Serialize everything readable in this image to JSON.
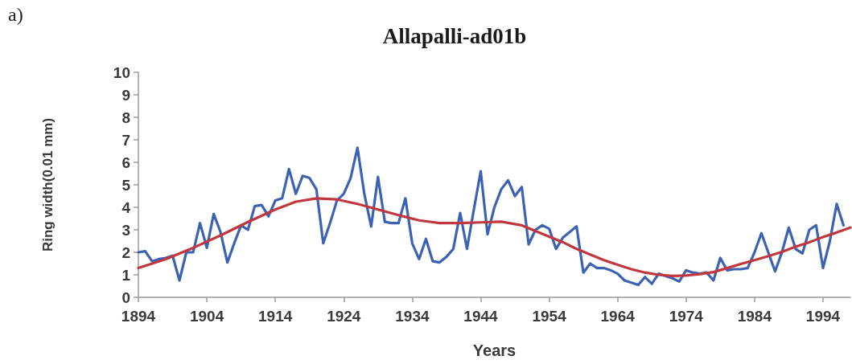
{
  "chart_data": {
    "type": "line",
    "title": "Allapalli-ad01b",
    "xlabel": "Years",
    "ylabel": "Ring width(0.01 mm)",
    "annotations": [
      "a)"
    ],
    "x": [
      1894,
      1895,
      1896,
      1897,
      1898,
      1899,
      1900,
      1901,
      1902,
      1903,
      1904,
      1905,
      1906,
      1907,
      1908,
      1909,
      1910,
      1911,
      1912,
      1913,
      1914,
      1915,
      1916,
      1917,
      1918,
      1919,
      1920,
      1921,
      1922,
      1923,
      1924,
      1925,
      1926,
      1927,
      1928,
      1929,
      1930,
      1931,
      1932,
      1933,
      1934,
      1935,
      1936,
      1937,
      1938,
      1939,
      1940,
      1941,
      1942,
      1943,
      1944,
      1945,
      1946,
      1947,
      1948,
      1949,
      1950,
      1951,
      1952,
      1953,
      1954,
      1955,
      1956,
      1957,
      1958,
      1959,
      1960,
      1961,
      1962,
      1963,
      1964,
      1965,
      1966,
      1967,
      1968,
      1969,
      1970,
      1971,
      1972,
      1973,
      1974,
      1975,
      1976,
      1977,
      1978,
      1979,
      1980,
      1981,
      1982,
      1983,
      1984,
      1985,
      1986,
      1987,
      1988,
      1989,
      1990,
      1991,
      1992,
      1993,
      1994,
      1995,
      1996,
      1997
    ],
    "series": [
      {
        "color": "#3c62b4",
        "values": [
          2.0,
          2.05,
          1.6,
          1.7,
          1.75,
          1.85,
          0.75,
          2.0,
          2.0,
          3.3,
          2.2,
          3.7,
          2.9,
          1.55,
          2.4,
          3.2,
          3.0,
          4.05,
          4.1,
          3.6,
          4.3,
          4.4,
          5.7,
          4.6,
          5.4,
          5.3,
          4.8,
          2.4,
          3.3,
          4.3,
          4.6,
          5.3,
          6.65,
          4.6,
          3.15,
          5.35,
          3.35,
          3.3,
          3.3,
          4.4,
          2.4,
          1.7,
          2.6,
          1.6,
          1.55,
          1.8,
          2.15,
          3.75,
          2.15,
          3.9,
          5.6,
          2.8,
          4.0,
          4.8,
          5.2,
          4.5,
          4.9,
          2.35,
          3.0,
          3.2,
          3.05,
          2.15,
          2.65,
          2.9,
          3.15,
          1.1,
          1.5,
          1.3,
          1.3,
          1.2,
          1.05,
          0.75,
          0.65,
          0.55,
          0.9,
          0.6,
          1.05,
          0.95,
          0.85,
          0.7,
          1.2,
          1.1,
          1.05,
          1.1,
          0.75,
          1.75,
          1.2,
          1.25,
          1.25,
          1.3,
          2.0,
          2.85,
          2.0,
          1.15,
          2.0,
          3.1,
          2.15,
          1.95,
          3.0,
          3.2,
          1.3,
          2.5,
          4.15,
          3.2
        ]
      },
      {
        "color": "#c1373f",
        "x": [
          1894,
          1898,
          1902,
          1906,
          1910,
          1914,
          1917,
          1920,
          1923,
          1926,
          1929,
          1932,
          1935,
          1938,
          1941,
          1944,
          1947,
          1950,
          1952,
          1954,
          1956,
          1958,
          1960,
          1962,
          1964,
          1966,
          1968,
          1970,
          1972,
          1974,
          1976,
          1978,
          1980,
          1982,
          1984,
          1986,
          1988,
          1990,
          1992,
          1994,
          1996,
          1998
        ],
        "values": [
          1.3,
          1.7,
          2.2,
          2.75,
          3.35,
          3.9,
          4.25,
          4.4,
          4.35,
          4.15,
          3.9,
          3.65,
          3.42,
          3.3,
          3.3,
          3.33,
          3.36,
          3.2,
          2.95,
          2.7,
          2.45,
          2.15,
          1.9,
          1.65,
          1.45,
          1.25,
          1.1,
          1.0,
          0.95,
          0.97,
          1.03,
          1.12,
          1.3,
          1.48,
          1.65,
          1.83,
          2.02,
          2.25,
          2.45,
          2.68,
          2.88,
          3.1
        ]
      }
    ],
    "xlim": [
      1894,
      1998
    ],
    "xticks": [
      1894,
      1904,
      1914,
      1924,
      1934,
      1944,
      1954,
      1964,
      1974,
      1984,
      1994
    ],
    "ylim": [
      0,
      10
    ],
    "yticks": [
      0,
      1,
      2,
      3,
      4,
      5,
      6,
      7,
      8,
      9,
      10
    ],
    "marker": "none",
    "line_style": "solid"
  }
}
